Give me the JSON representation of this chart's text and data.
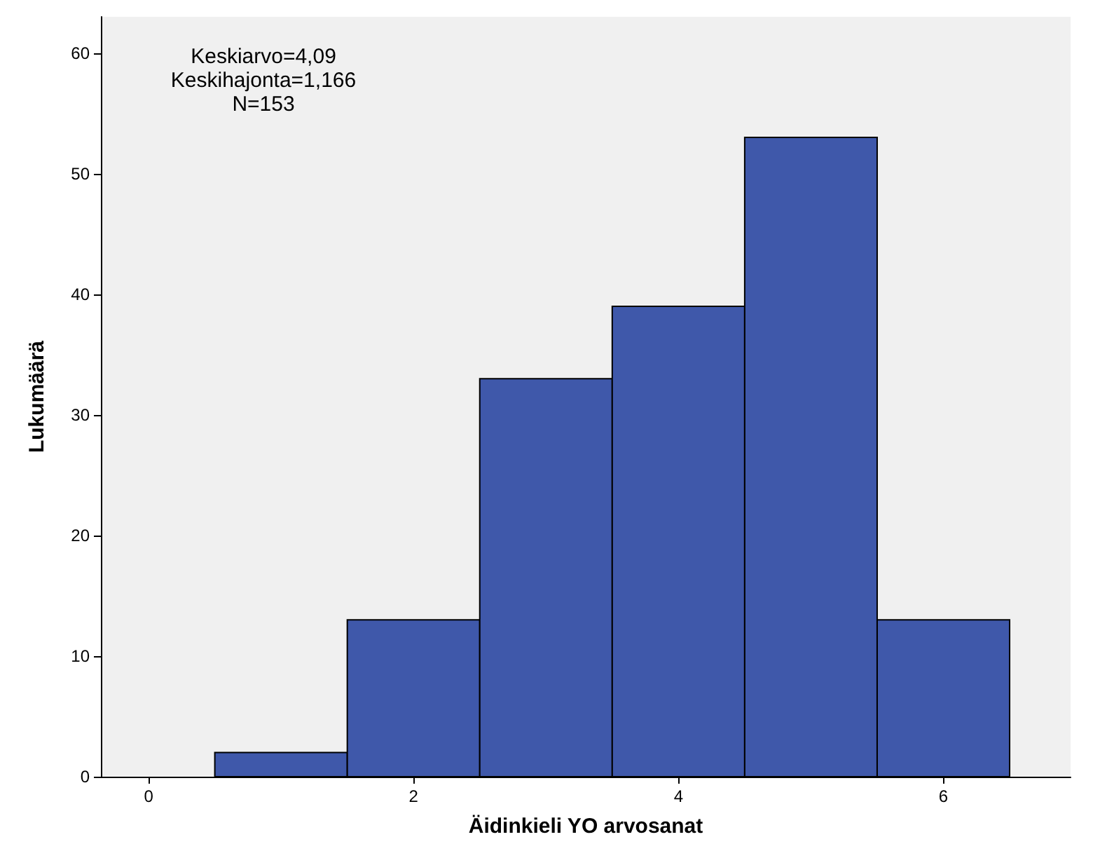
{
  "chart_data": {
    "type": "histogram",
    "xlabel": "Äidinkieli YO arvosanat",
    "ylabel": "Lukumäärä",
    "bins": [
      0.5,
      1.5,
      2.5,
      3.5,
      4.5,
      5.5,
      6.5
    ],
    "values": [
      2,
      13,
      33,
      39,
      53,
      13
    ],
    "color": "#3f58aa",
    "xlim": [
      -0.36,
      6.96
    ],
    "xticks": [
      0,
      2,
      4,
      6
    ],
    "ylim": [
      0,
      63
    ],
    "yticks": [
      0,
      10,
      20,
      30,
      40,
      50,
      60
    ],
    "grid": false,
    "annotations": [
      "Keskiarvo=4,09",
      "Keskihajonta=1,166",
      "N=153"
    ]
  }
}
